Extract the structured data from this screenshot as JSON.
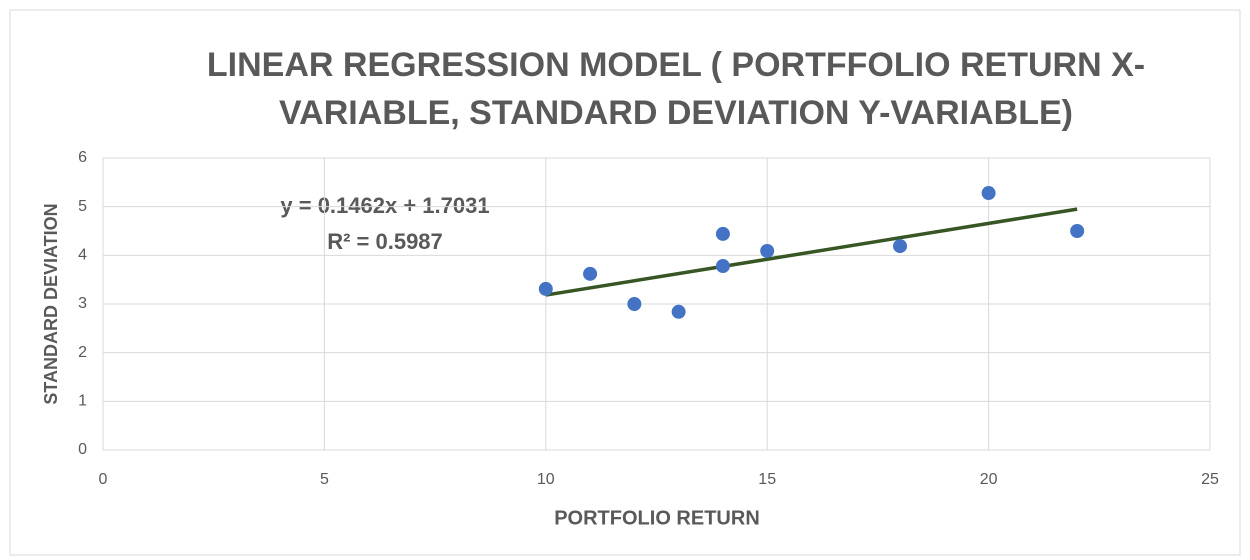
{
  "chart_data": {
    "type": "scatter",
    "title_lines": [
      "LINEAR REGRESSION MODEL ( PORTFFOLIO RETURN X-",
      "VARIABLE, STANDARD DEVIATION Y-VARIABLE)"
    ],
    "x_label": "PORTFOLIO RETURN",
    "y_label": "STANDARD DEVIATION",
    "series": [
      {
        "name": "Standard Deviation",
        "color": "#4472c4",
        "x": [
          10,
          11,
          12,
          13,
          14,
          14,
          15,
          18,
          20,
          22
        ],
        "values": [
          3.31,
          3.62,
          3.0,
          2.84,
          4.44,
          3.78,
          4.09,
          4.19,
          5.28,
          4.5
        ]
      }
    ],
    "trendline": {
      "color": "#375623",
      "equation": "y = 0.1462x + 1.7031",
      "r_squared": "R² = 0.5987"
    },
    "xlim": [
      0,
      25
    ],
    "xticks": [
      0,
      5,
      10,
      15,
      20,
      25
    ],
    "ylim": [
      0,
      6
    ],
    "yticks": [
      0,
      1,
      2,
      3,
      4,
      5,
      6
    ],
    "grid": true
  }
}
